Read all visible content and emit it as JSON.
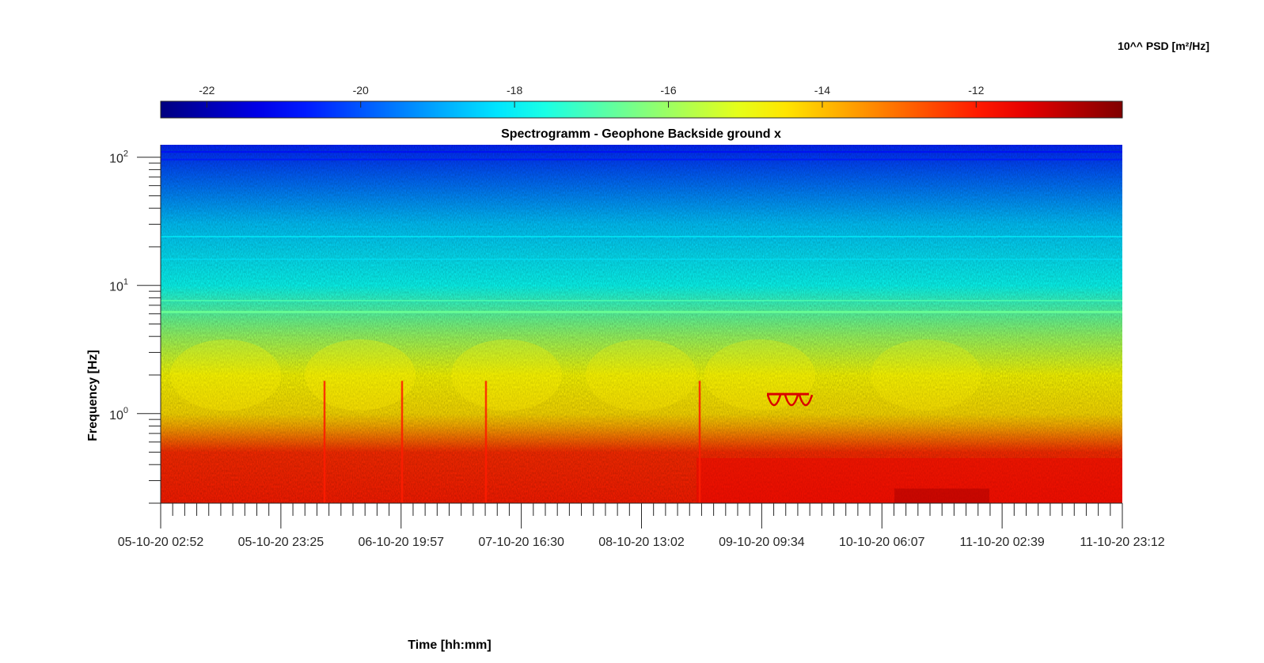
{
  "chart_data": {
    "type": "heatmap",
    "title": "Spectrogramm - Geophone Backside ground x",
    "xlabel": "Time [hh:mm]",
    "ylabel": "Frequency [Hz]",
    "y_scale": "log",
    "ylim": [
      0.2,
      125
    ],
    "y_ticks": [
      {
        "value": 1,
        "base": "10",
        "exp": "0"
      },
      {
        "value": 10,
        "base": "10",
        "exp": "1"
      },
      {
        "value": 100,
        "base": "10",
        "exp": "2"
      }
    ],
    "x_range": [
      "05-10-20 02:52",
      "11-10-20 23:12"
    ],
    "x_ticks": [
      "05-10-20 02:52",
      "05-10-20 23:25",
      "06-10-20 19:57",
      "07-10-20 16:30",
      "08-10-20 13:02",
      "09-10-20 09:34",
      "10-10-20 06:07",
      "11-10-20 02:39",
      "11-10-20 23:12"
    ],
    "colorbar": {
      "label": "10^^ PSD [m²/Hz]",
      "colormap": "jet",
      "range": [
        -22.6,
        -10.1
      ],
      "ticks": [
        "-22",
        "-20",
        "-18",
        "-16",
        "-14",
        "-12"
      ],
      "tick_values": [
        -22,
        -20,
        -18,
        -16,
        -14,
        -12
      ],
      "location": "top"
    },
    "psd_profile": [
      {
        "freq": 0.2,
        "log10_psd": -12.0
      },
      {
        "freq": 0.5,
        "log10_psd": -12.2
      },
      {
        "freq": 0.8,
        "log10_psd": -13.8
      },
      {
        "freq": 1.0,
        "log10_psd": -14.4
      },
      {
        "freq": 2.0,
        "log10_psd": -14.8
      },
      {
        "freq": 4.0,
        "log10_psd": -16.0
      },
      {
        "freq": 6.0,
        "log10_psd": -16.8
      },
      {
        "freq": 10.0,
        "log10_psd": -17.8
      },
      {
        "freq": 30.0,
        "log10_psd": -18.6
      },
      {
        "freq": 60.0,
        "log10_psd": -19.6
      },
      {
        "freq": 125.0,
        "log10_psd": -20.6
      }
    ]
  }
}
